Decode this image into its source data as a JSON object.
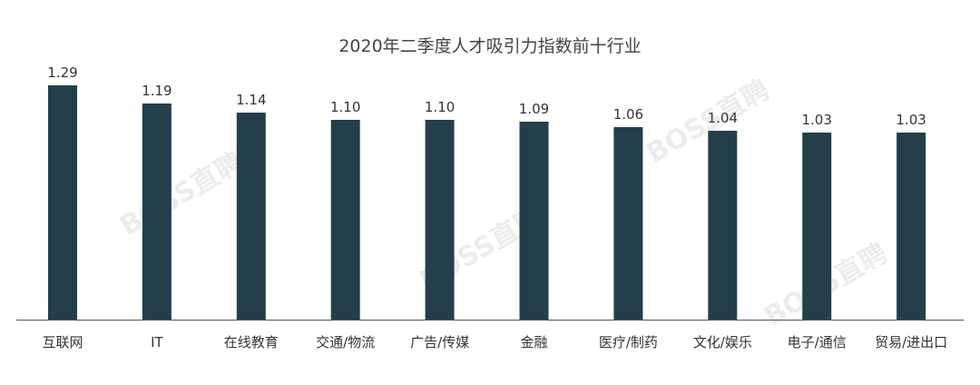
{
  "chart_data": {
    "type": "bar",
    "title": "2020年二季度人才吸引力指数前十行业",
    "categories": [
      "互联网",
      "IT",
      "在线教育",
      "交通/物流",
      "广告/传媒",
      "金融",
      "医疗/制药",
      "文化/娱乐",
      "电子/通信",
      "贸易/进出口"
    ],
    "values": [
      1.29,
      1.19,
      1.14,
      1.1,
      1.1,
      1.09,
      1.06,
      1.04,
      1.03,
      1.03
    ],
    "value_labels": [
      "1.29",
      "1.19",
      "1.14",
      "1.10",
      "1.10",
      "1.09",
      "1.06",
      "1.04",
      "1.03",
      "1.03"
    ],
    "xlabel": "",
    "ylabel": "",
    "ylim": [
      0,
      1.3
    ],
    "grid": false,
    "bar_color": "#243f4a",
    "watermark": "BOSS直聘"
  }
}
